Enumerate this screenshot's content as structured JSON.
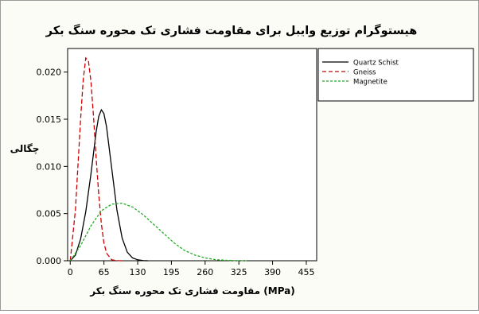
{
  "chart_data": {
    "type": "line",
    "title": "هیستوگرام توزیع وایبل برای مقاومت فشاری تک محوره سنگ بکر",
    "xlabel": "مقاومت فشاری تک محوره سنگ بکر (MPa)",
    "ylabel": "چگالی",
    "xlim": [
      -5,
      475
    ],
    "ylim": [
      0,
      0.0225
    ],
    "xticks": [
      0,
      65,
      130,
      195,
      260,
      325,
      390,
      455
    ],
    "yticks": [
      0.0,
      0.005,
      0.01,
      0.015,
      0.02
    ],
    "ytick_labels": [
      "0.000",
      "0.005",
      "0.010",
      "0.015",
      "0.020"
    ],
    "grid": false,
    "legend_position": "right",
    "series": [
      {
        "name": "Quartz Schist",
        "color": "#000000",
        "dash": "solid",
        "x": [
          0,
          10,
          20,
          30,
          40,
          50,
          55,
          60,
          65,
          70,
          80,
          90,
          100,
          110,
          120,
          130,
          140,
          150
        ],
        "y": [
          0,
          0.0006,
          0.0023,
          0.0052,
          0.0092,
          0.0137,
          0.0153,
          0.016,
          0.0156,
          0.0142,
          0.0098,
          0.0054,
          0.0024,
          0.0009,
          0.0003,
          0.0001,
          2e-05,
          0
        ]
      },
      {
        "name": "Gneiss",
        "color": "#cc0000",
        "dash": "dashed",
        "x": [
          0,
          10,
          20,
          25,
          30,
          35,
          40,
          45,
          50,
          55,
          60,
          65,
          70,
          80,
          90,
          100
        ],
        "y": [
          0,
          0.0054,
          0.015,
          0.0192,
          0.0215,
          0.0212,
          0.019,
          0.0152,
          0.0108,
          0.007,
          0.0039,
          0.0019,
          0.0008,
          0.0001,
          1e-05,
          0
        ]
      },
      {
        "name": "Magnetite",
        "color": "#22aa22",
        "dash": "dashed",
        "x": [
          0,
          20,
          40,
          60,
          80,
          100,
          120,
          140,
          160,
          180,
          200,
          220,
          240,
          260,
          280,
          300,
          320,
          340
        ],
        "y": [
          0,
          0.0016,
          0.0037,
          0.0053,
          0.006,
          0.0061,
          0.0057,
          0.0049,
          0.0039,
          0.0029,
          0.0019,
          0.0011,
          0.0006,
          0.0003,
          0.00012,
          5e-05,
          1e-05,
          0
        ]
      }
    ]
  }
}
